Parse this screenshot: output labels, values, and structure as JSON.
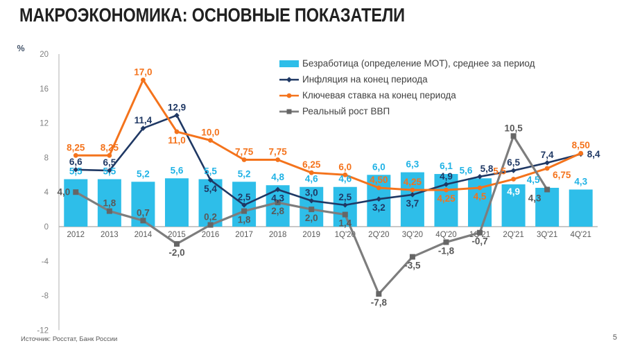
{
  "slide": {
    "title": "МАКРОЭКОНОМИКА: ОСНОВНЫЕ ПОКАЗАТЕЛИ",
    "source": "Источник: Росстат, Банк России",
    "page_number": "5"
  },
  "colors": {
    "title": "#212121",
    "bar": "#2EBEE9",
    "bar_label": "#1FB2E5",
    "inflation": "#1F3864",
    "key_rate": "#F4731C",
    "gdp_line": "#7D7D7D",
    "gdp_marker": "#666666",
    "gdp_label": "#595959",
    "axis_line": "#BFBFBF",
    "zero_line": "#A6A6A6",
    "y_tick_text": "#808080",
    "x_tick_text": "#595959",
    "percent_symbol": "#44546A",
    "legend_text": "#404040",
    "inside_label": "#FFFFFF"
  },
  "chart_data": {
    "type": "bar",
    "subtype": "combo bar + 3 lines",
    "title": "",
    "xlabel": "",
    "ylabel": "%",
    "grid": false,
    "legend_position": "top-right-inside",
    "y_axis": {
      "min": -12,
      "max": 20,
      "tick_step": 4,
      "ticks": [
        20,
        16,
        12,
        8,
        4,
        0,
        -4,
        -8,
        -12
      ],
      "unit": "%"
    },
    "categories": [
      "2012",
      "2013",
      "2014",
      "2015",
      "2016",
      "2017",
      "2018",
      "2019",
      "1Q'20",
      "2Q'20",
      "3Q'20",
      "4Q'20",
      "1Q'21",
      "2Q'21",
      "3Q'21",
      "4Q'21"
    ],
    "series": [
      {
        "name": "Безработица (определение МОТ), среднее за период",
        "type": "bar",
        "marker": "none",
        "values": [
          5.5,
          5.5,
          5.2,
          5.6,
          5.5,
          5.2,
          4.8,
          4.6,
          4.6,
          6.0,
          6.3,
          6.1,
          5.6,
          4.9,
          4.5,
          4.3
        ],
        "labels": [
          "5,5",
          "5,5",
          "5,2",
          "5,6",
          "5,5",
          "5,2",
          "4,8",
          "4,6",
          "4,6",
          "6,0",
          "6,3",
          "6,1",
          "5,6",
          "4,9",
          "4,5",
          "4,3"
        ],
        "label_positions": [
          "above",
          "above",
          "above",
          "above",
          "above",
          "above",
          "above",
          "above",
          "above",
          "above",
          "above",
          "above",
          "above-left",
          "inside",
          "above-left",
          "above"
        ]
      },
      {
        "name": "Инфляция на конец периода",
        "type": "line",
        "marker": "diamond",
        "values": [
          6.6,
          6.5,
          11.4,
          12.9,
          5.4,
          2.5,
          4.3,
          3.0,
          2.5,
          3.2,
          3.7,
          4.9,
          5.8,
          6.5,
          7.4,
          8.4
        ],
        "labels": [
          "6,6",
          "6,5",
          "11,4",
          "12,9",
          "5,4",
          "2,5",
          "4,3",
          "3,0",
          "2,5",
          "3,2",
          "3,7",
          "4,9",
          "5,8",
          "6,5",
          "7,4",
          "8,4"
        ],
        "label_positions": [
          "above",
          "above",
          "above",
          "above",
          "below",
          "above",
          "below",
          "above",
          "above",
          "below",
          "below",
          "above",
          "above-right",
          "above",
          "above",
          "right"
        ]
      },
      {
        "name": "Ключевая ставка на конец периода",
        "type": "line",
        "marker": "circle",
        "values": [
          8.25,
          8.25,
          17.0,
          11.0,
          10.0,
          7.75,
          7.75,
          6.25,
          6.0,
          4.5,
          4.25,
          4.25,
          4.5,
          5.5,
          6.75,
          8.5
        ],
        "labels": [
          "8,25",
          "8,25",
          "17,0",
          "11,0",
          "10,0",
          "7,75",
          "7,75",
          "6,25",
          "6,0",
          "4,50",
          "4,25",
          "4,25",
          "4,5",
          "5,5",
          "6,75",
          "8,50"
        ],
        "label_positions": [
          "above",
          "above",
          "above",
          "below",
          "above",
          "above",
          "above",
          "above",
          "above",
          "above",
          "above",
          "below",
          "below",
          "above-left",
          "below-right",
          "above"
        ]
      },
      {
        "name": "Реальный рост ВВП",
        "type": "line",
        "marker": "square",
        "values": [
          4.0,
          1.8,
          0.7,
          -2.0,
          0.2,
          1.8,
          2.8,
          2.0,
          1.4,
          -7.8,
          -3.5,
          -1.8,
          -0.7,
          10.5,
          4.3,
          null
        ],
        "labels": [
          "4,0",
          "1,8",
          "0,7",
          "-2,0",
          "0,2",
          "1,8",
          "2,8",
          "2,0",
          "1,4",
          "-7,8",
          "-3,5",
          "-1,8",
          "-0,7",
          "10,5",
          "4,3",
          null
        ],
        "label_positions": [
          "left",
          "above",
          "above",
          "below",
          "above",
          "below",
          "below",
          "below",
          "below",
          "below",
          "below",
          "below",
          "below",
          "above",
          "below-left",
          null
        ]
      }
    ]
  }
}
